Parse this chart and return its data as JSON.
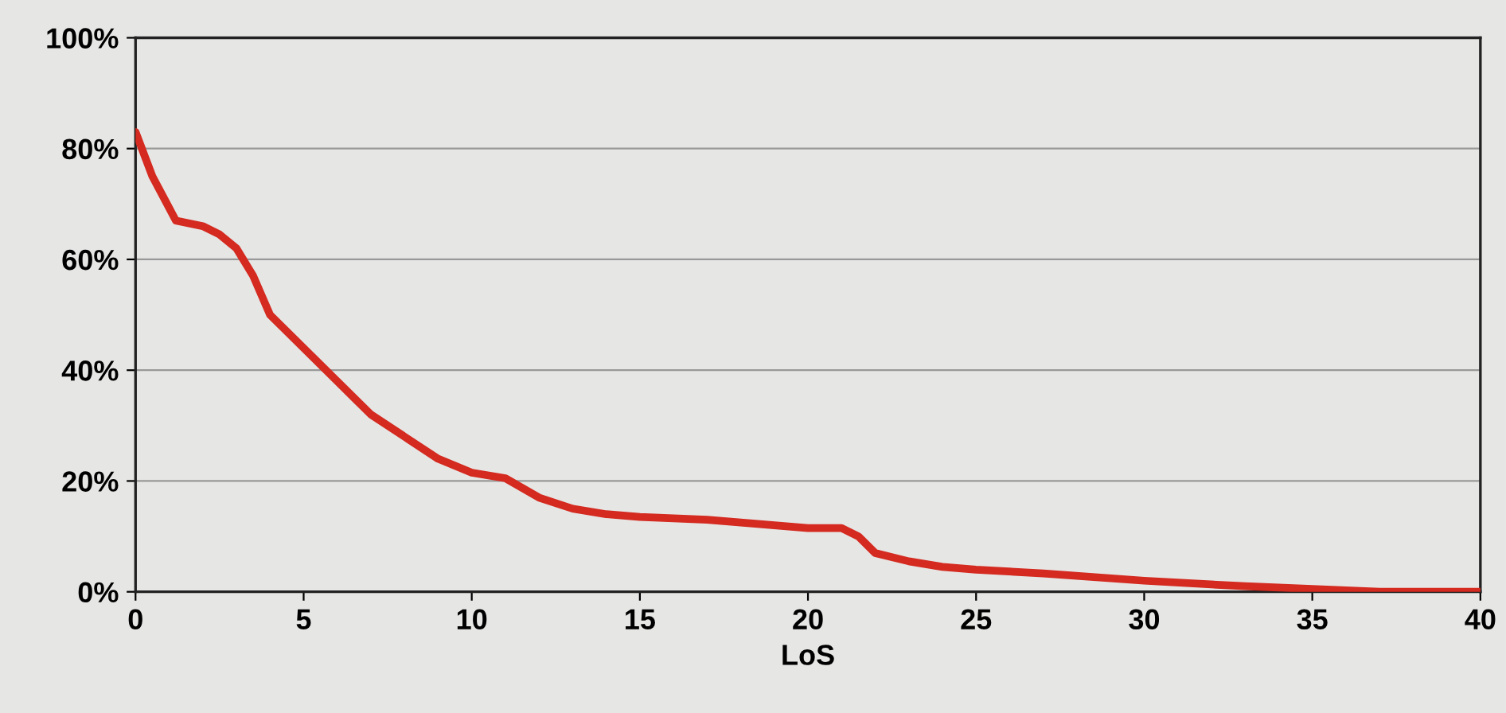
{
  "chart_data": {
    "type": "line",
    "xlabel": "LoS",
    "x": [
      0,
      0.5,
      1.2,
      2,
      2.5,
      3,
      3.5,
      4,
      5,
      6,
      7,
      8,
      9,
      10,
      11,
      12,
      13,
      14,
      15,
      17,
      18,
      20,
      21,
      21.5,
      22,
      23,
      24,
      25,
      27,
      30,
      33,
      35,
      37,
      40
    ],
    "series": [
      {
        "color": "#d42a20",
        "values": [
          83,
          75,
          67,
          66,
          64.5,
          62,
          57,
          50,
          44,
          38,
          32,
          28,
          24,
          21.5,
          20.5,
          17,
          15,
          14,
          13.5,
          13,
          12.5,
          11.5,
          11.5,
          10,
          7,
          5.5,
          4.5,
          4,
          3.3,
          2,
          1,
          0.5,
          0,
          0
        ]
      }
    ],
    "xlim": [
      0,
      40
    ],
    "xticks": [
      0,
      5,
      10,
      15,
      20,
      25,
      30,
      35,
      40
    ],
    "ylim": [
      0,
      100
    ],
    "yticks": [
      {
        "value": 0,
        "label": "0%"
      },
      {
        "value": 20,
        "label": "20%"
      },
      {
        "value": 40,
        "label": "40%"
      },
      {
        "value": 60,
        "label": "60%"
      },
      {
        "value": 80,
        "label": "80%"
      },
      {
        "value": 100,
        "label": "100%"
      }
    ],
    "grid": "y",
    "marker": "none",
    "line_style": "solid"
  }
}
